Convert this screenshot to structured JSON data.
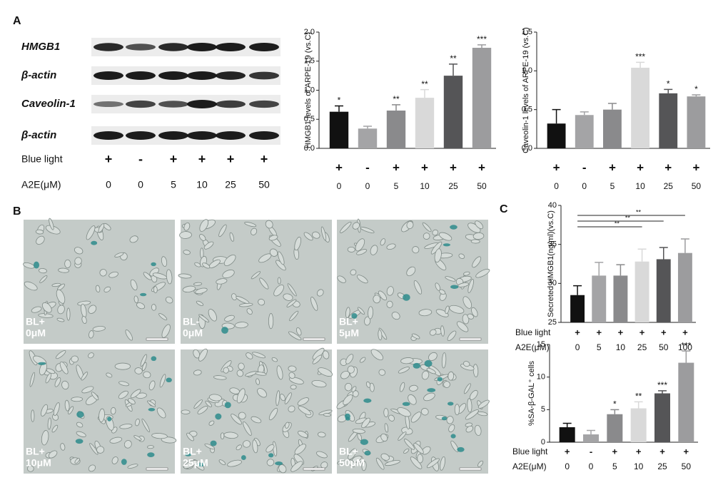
{
  "panel_labels": [
    "A",
    "B",
    "C"
  ],
  "blot": {
    "rows": [
      "HMGB1",
      "β-actin",
      "Caveolin-1",
      "β-actin"
    ],
    "conditions": [
      {
        "label": "Blue light",
        "values": [
          "+",
          "-",
          "+",
          "+",
          "+",
          "+"
        ]
      },
      {
        "label": "A2E(μM)",
        "values": [
          "0",
          "0",
          "5",
          "10",
          "25",
          "50"
        ]
      }
    ]
  },
  "micrographs": [
    {
      "label": [
        "BL+",
        "0μM"
      ]
    },
    {
      "label": [
        "BL-",
        "0μM"
      ]
    },
    {
      "label": [
        "BL+",
        "5μM"
      ]
    },
    {
      "label": [
        "BL+",
        "10μM"
      ]
    },
    {
      "label": [
        "BL+",
        "25μM"
      ]
    },
    {
      "label": [
        "BL+",
        "50μM"
      ]
    }
  ],
  "chart_data": [
    {
      "type": "bar",
      "y_label": "HMGB1 levels of ARPE-19 (vs.C)",
      "blue_light": [
        "+",
        "-",
        "+",
        "+",
        "+",
        "+"
      ],
      "categories": [
        "0",
        "0",
        "5",
        "10",
        "25",
        "50"
      ],
      "values": [
        0.63,
        0.34,
        0.65,
        0.87,
        1.25,
        1.73
      ],
      "errors": [
        0.1,
        0.04,
        0.1,
        0.14,
        0.2,
        0.05
      ],
      "significance": [
        "*",
        null,
        "**",
        "**",
        "**",
        "***"
      ],
      "colors": [
        "#111111",
        "#a4a4a6",
        "#8a8a8c",
        "#d9d9d9",
        "#555557",
        "#9c9c9e"
      ],
      "ylim": [
        0,
        2.0
      ],
      "yticks": [
        {
          "value": 0,
          "label": "0.0"
        },
        0.5,
        {
          "value": 1,
          "label": "1.0"
        },
        1.5,
        {
          "value": 2,
          "label": "2.0"
        }
      ]
    },
    {
      "type": "bar",
      "y_label": "Caveolin-1 levels of ARPE-19 (vs.C)",
      "blue_light": [
        "+",
        "-",
        "+",
        "+",
        "+",
        "+"
      ],
      "categories": [
        "0",
        "0",
        "5",
        "10",
        "25",
        "50"
      ],
      "values": [
        0.32,
        0.43,
        0.5,
        1.04,
        0.71,
        0.67
      ],
      "errors": [
        0.18,
        0.04,
        0.08,
        0.07,
        0.05,
        0.02
      ],
      "significance": [
        null,
        null,
        null,
        "***",
        "*",
        "*"
      ],
      "colors": [
        "#111111",
        "#a4a4a6",
        "#8a8a8c",
        "#d9d9d9",
        "#555557",
        "#9c9c9e"
      ],
      "ylim": [
        0,
        1.5
      ],
      "yticks": [
        {
          "value": 0,
          "label": "0.0"
        },
        0.5,
        {
          "value": 1,
          "label": "1.0"
        },
        1.5
      ]
    },
    {
      "type": "bar",
      "y_label": "Secreted HMGB1(ng/ml)(vs.C)",
      "row_labels": [
        "Blue light",
        "A2E(μM)"
      ],
      "blue_light": [
        "+",
        "+",
        "+",
        "+",
        "+",
        "+"
      ],
      "categories": [
        "0",
        "5",
        "10",
        "25",
        "50",
        "100"
      ],
      "values": [
        28.5,
        31,
        31,
        32.8,
        33.1,
        33.9
      ],
      "errors": [
        1.2,
        1.7,
        1.4,
        1.6,
        1.5,
        1.8
      ],
      "brackets": [
        "**",
        "**",
        "**"
      ],
      "colors": [
        "#111111",
        "#a4a4a6",
        "#8a8a8c",
        "#d9d9d9",
        "#555557",
        "#9c9c9e"
      ],
      "ylim": [
        25,
        40
      ],
      "yticks": [
        25,
        30,
        35,
        40
      ]
    },
    {
      "type": "bar",
      "y_label": "%SA-β-GAL⁺ cells",
      "row_labels": [
        "Blue light",
        "A2E(μM)"
      ],
      "blue_light": [
        "+",
        "-",
        "+",
        "+",
        "+",
        "+"
      ],
      "categories": [
        "0",
        "0",
        "5",
        "10",
        "25",
        "50"
      ],
      "values": [
        2.3,
        1.2,
        4.3,
        5.2,
        7.5,
        12.2
      ],
      "errors": [
        0.6,
        0.6,
        0.7,
        1.0,
        0.4,
        1.8
      ],
      "significance": [
        null,
        null,
        "*",
        "**",
        "***",
        "***"
      ],
      "colors": [
        "#111111",
        "#a4a4a6",
        "#8a8a8c",
        "#d9d9d9",
        "#555557",
        "#9c9c9e"
      ],
      "ylim": [
        0,
        15
      ],
      "yticks": [
        0,
        5,
        10,
        15
      ]
    }
  ]
}
